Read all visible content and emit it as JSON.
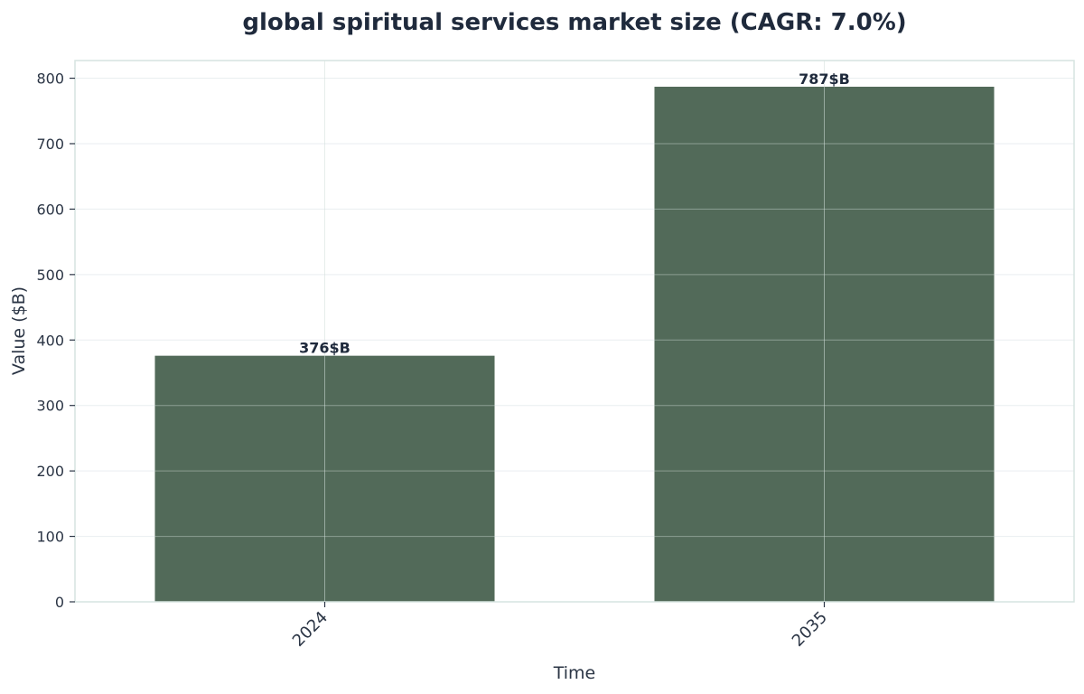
{
  "chart_data": {
    "type": "bar",
    "title": "global spiritual services market size (CAGR: 7.0%)",
    "xlabel": "Time",
    "ylabel": "Value ($B)",
    "categories": [
      "2024",
      "2035"
    ],
    "values": [
      376,
      787
    ],
    "data_labels": [
      "376$B",
      "787$B"
    ],
    "yticks": [
      "0",
      "100",
      "200",
      "300",
      "400",
      "500",
      "600",
      "700",
      "800"
    ],
    "ylim": [
      0,
      827
    ],
    "grid": true,
    "bar_color": "#526a59",
    "axis_color": "#d6e4e0",
    "text_color": "#1f2a3c"
  }
}
